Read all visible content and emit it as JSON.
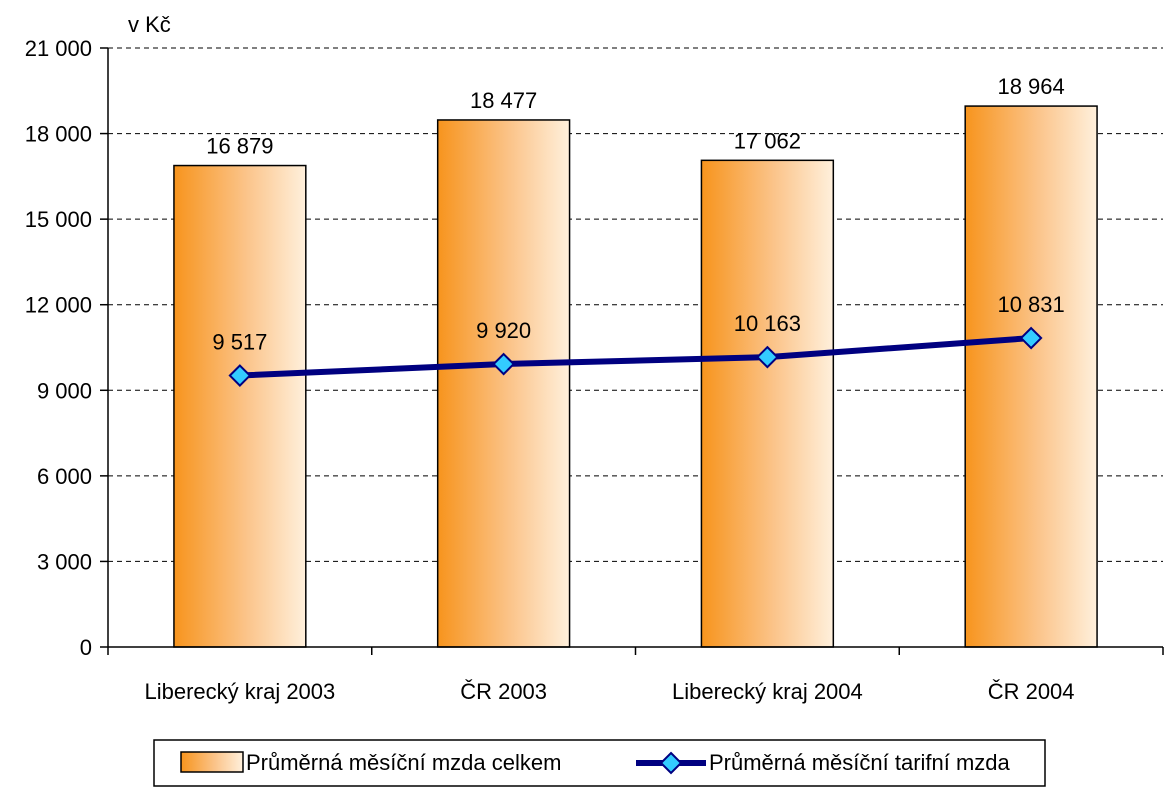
{
  "chart_data": {
    "type": "bar",
    "ylabel": "v  Kč",
    "ylim": [
      0,
      21000
    ],
    "ytick_values": [
      0,
      3000,
      6000,
      9000,
      12000,
      15000,
      18000,
      21000
    ],
    "ytick_labels": [
      "0",
      "3 000",
      "6 000",
      "9 000",
      "12 000",
      "15 000",
      "18 000",
      "21 000"
    ],
    "grid": "horizontal dashed",
    "legend_position": "bottom",
    "categories": [
      "Liberecký kraj 2003",
      "ČR 2003",
      "Liberecký kraj 2004",
      "ČR 2004"
    ],
    "series": [
      {
        "name": "Průměrná měsíční mzda celkem",
        "type": "bar",
        "color": "#f7941d",
        "values": [
          16879,
          18477,
          17062,
          18964
        ],
        "labels": [
          "16 879",
          "18 477",
          "17 062",
          "18 964"
        ]
      },
      {
        "name": "Průměrná měsíční tarifní mzda",
        "type": "line",
        "color": "#000080",
        "marker": "diamond",
        "marker_color": "#33ccff",
        "values": [
          9517,
          9920,
          10163,
          10831
        ],
        "labels": [
          "9 517",
          "9 920",
          "10 163",
          "10 831"
        ]
      }
    ]
  }
}
